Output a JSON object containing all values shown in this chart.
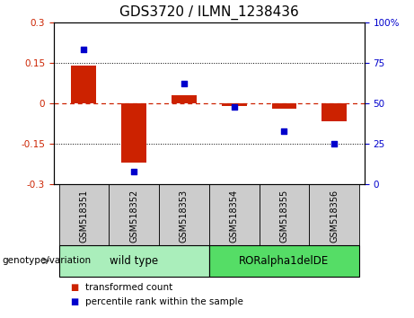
{
  "title": "GDS3720 / ILMN_1238436",
  "samples": [
    "GSM518351",
    "GSM518352",
    "GSM518353",
    "GSM518354",
    "GSM518355",
    "GSM518356"
  ],
  "red_values": [
    0.14,
    -0.22,
    0.03,
    -0.01,
    -0.02,
    -0.065
  ],
  "blue_values": [
    83,
    8,
    62,
    48,
    33,
    25
  ],
  "ylim_left": [
    -0.3,
    0.3
  ],
  "ylim_right": [
    0,
    100
  ],
  "yticks_left": [
    -0.3,
    -0.15,
    0,
    0.15,
    0.3
  ],
  "yticks_right": [
    0,
    25,
    50,
    75,
    100
  ],
  "ytick_labels_left": [
    "-0.3",
    "-0.15",
    "0",
    "0.15",
    "0.3"
  ],
  "ytick_labels_right": [
    "0",
    "25",
    "50",
    "75",
    "100%"
  ],
  "hlines_dotted": [
    -0.15,
    0.15
  ],
  "hline_dashed": 0,
  "red_color": "#cc2200",
  "blue_color": "#0000cc",
  "bar_width": 0.5,
  "groups": [
    {
      "label": "wild type",
      "start": 0,
      "end": 2,
      "color": "#aaeebb"
    },
    {
      "label": "RORalpha1delDE",
      "start": 3,
      "end": 5,
      "color": "#55dd66"
    }
  ],
  "genotype_label": "genotype/variation",
  "legend_items": [
    {
      "label": "transformed count",
      "color": "#cc2200"
    },
    {
      "label": "percentile rank within the sample",
      "color": "#0000cc"
    }
  ],
  "bg_color": "#ffffff",
  "plot_bg": "#ffffff",
  "sample_box_color": "#cccccc",
  "title_fontsize": 11,
  "axis_fontsize": 7.5,
  "sample_fontsize": 7,
  "legend_fontsize": 7.5,
  "group_fontsize": 8.5
}
